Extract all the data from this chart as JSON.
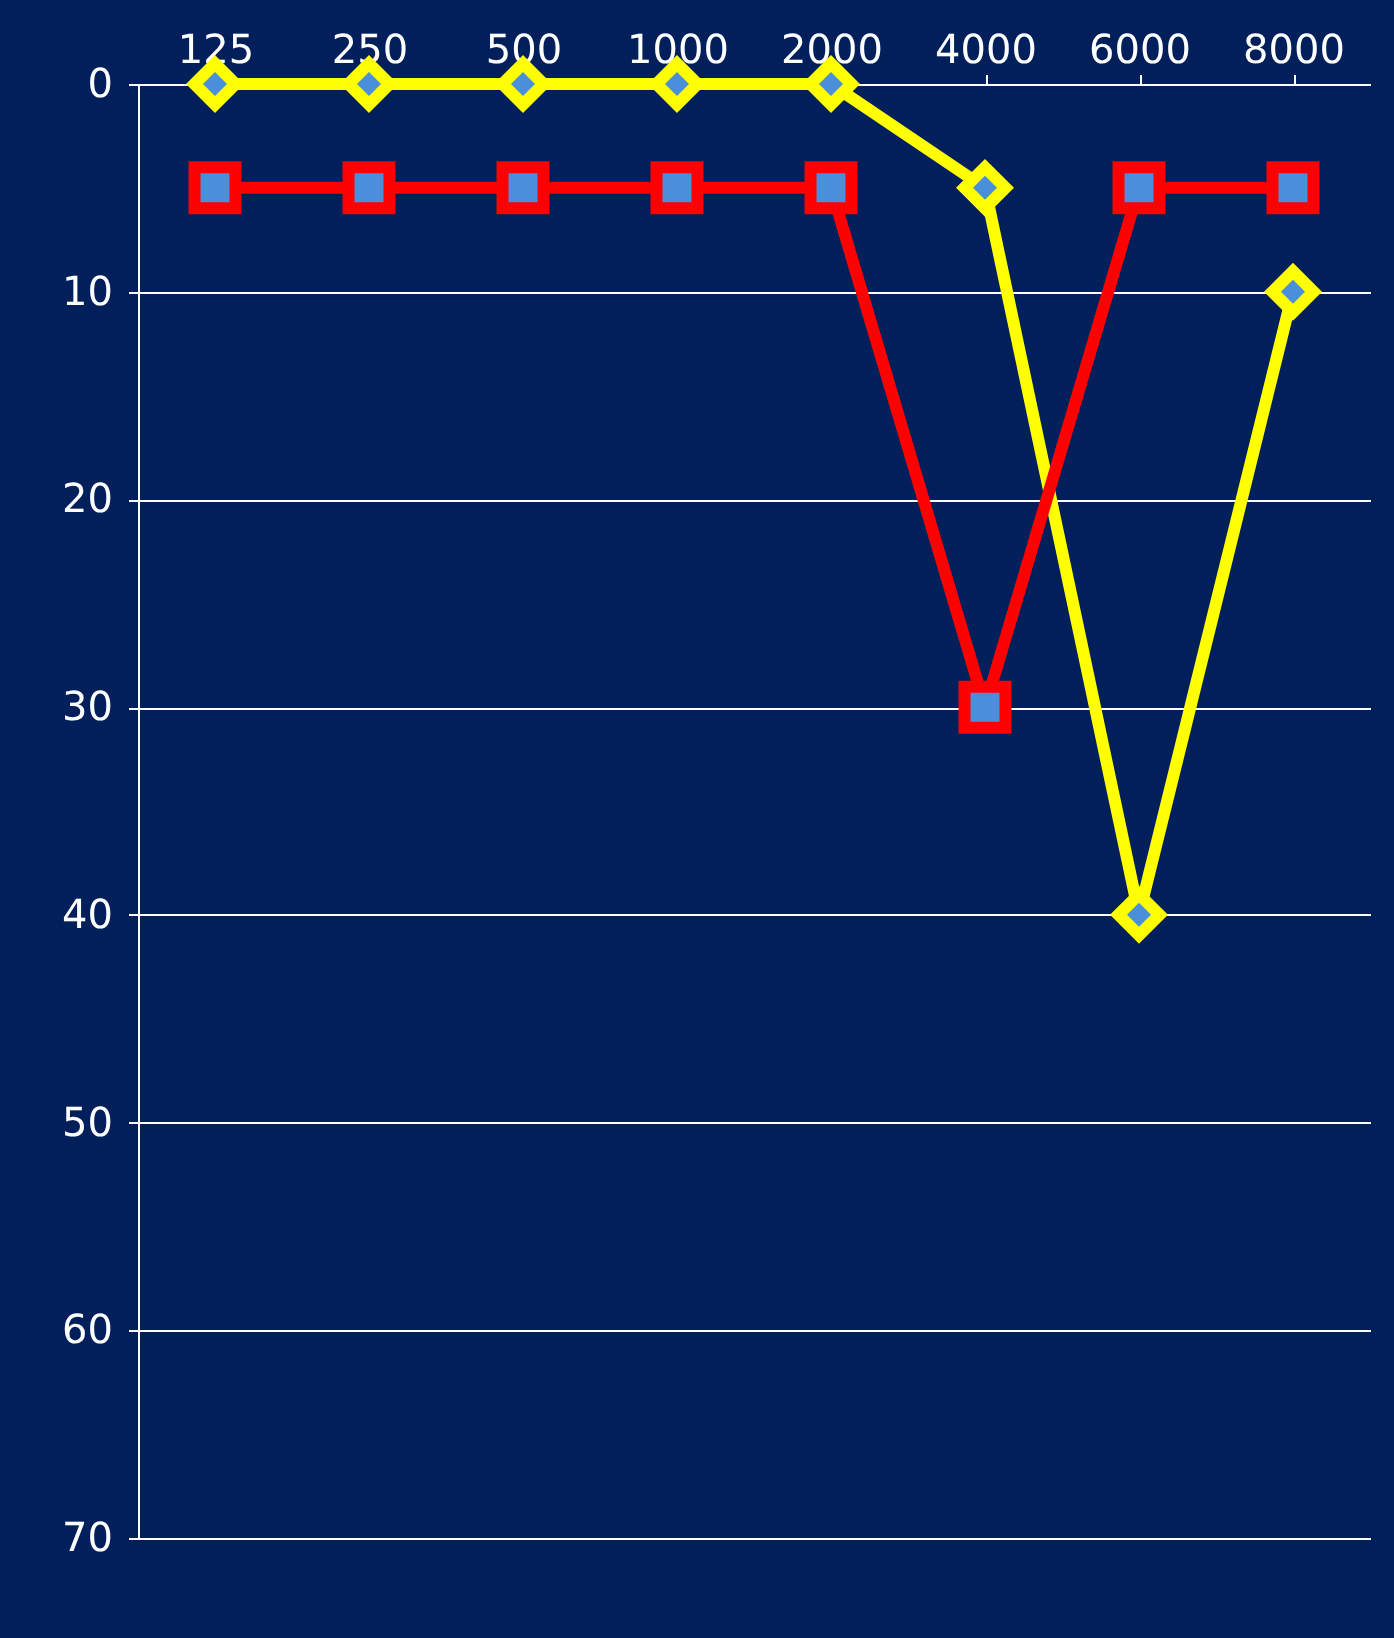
{
  "chart_data": {
    "type": "line",
    "categories": [
      "125",
      "250",
      "500",
      "1000",
      "2000",
      "4000",
      "6000",
      "8000"
    ],
    "series": [
      {
        "color": "#ffff00",
        "marker": "diamond",
        "values": [
          0,
          0,
          0,
          0,
          0,
          5,
          40,
          10
        ]
      },
      {
        "color": "#ff0000",
        "marker": "square",
        "values": [
          5,
          5,
          5,
          5,
          5,
          30,
          5,
          5
        ]
      }
    ],
    "ylim": [
      70,
      0
    ],
    "yticks": [
      0,
      10,
      20,
      30,
      40,
      50,
      60,
      70
    ],
    "grid": "y",
    "line_style": "solid"
  }
}
